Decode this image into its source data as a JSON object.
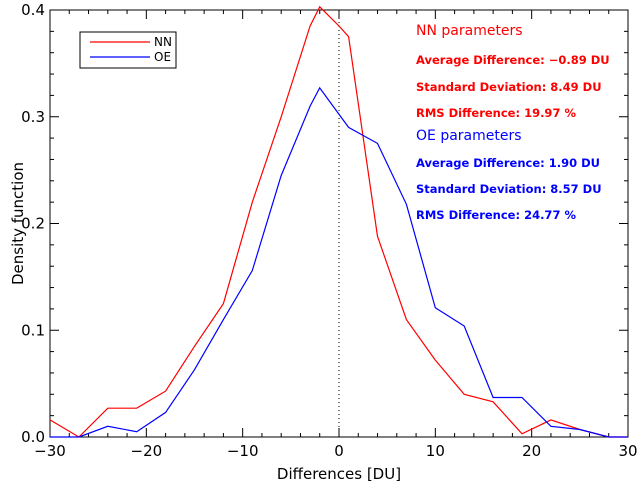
{
  "chart_data": {
    "type": "line",
    "xlabel": "Differences [DU]",
    "ylabel": "Density function",
    "xlim": [
      -30,
      30
    ],
    "ylim": [
      0,
      0.4
    ],
    "x_ticks": [
      -30,
      -20,
      -10,
      0,
      10,
      20,
      30
    ],
    "x_tick_labels": [
      "−30",
      "−20",
      "−10",
      "0",
      "10",
      "20",
      "30"
    ],
    "y_ticks": [
      0,
      0.1,
      0.2,
      0.3,
      0.4
    ],
    "y_tick_labels": [
      "0.0",
      "0.1",
      "0.2",
      "0.3",
      "0.4"
    ],
    "reference_line": {
      "x": 0,
      "style": "dotted",
      "color": "#000000"
    },
    "legend_position": "top-left",
    "series": [
      {
        "name": "NN",
        "color": "#ff0000",
        "x": [
          -30,
          -27,
          -24,
          -21,
          -18,
          -15,
          -12,
          -9,
          -6,
          -3,
          -2,
          0,
          1,
          4,
          7,
          10,
          13,
          16,
          19,
          22,
          25,
          28,
          30
        ],
        "y": [
          0.016,
          0.0,
          0.027,
          0.027,
          0.043,
          0.085,
          0.125,
          0.22,
          0.3,
          0.385,
          0.403,
          0.385,
          0.375,
          0.188,
          0.11,
          0.072,
          0.04,
          0.033,
          0.003,
          0.016,
          0.007,
          0.0,
          0.0
        ]
      },
      {
        "name": "OE",
        "color": "#0000ff",
        "x": [
          -30,
          -27,
          -24,
          -21,
          -18,
          -15,
          -12,
          -9,
          -6,
          -3,
          -2,
          1,
          4,
          7,
          10,
          13,
          16,
          19,
          22,
          25,
          28,
          30
        ],
        "y": [
          0.0,
          0.0,
          0.01,
          0.005,
          0.023,
          0.063,
          0.11,
          0.156,
          0.245,
          0.31,
          0.327,
          0.29,
          0.275,
          0.218,
          0.121,
          0.104,
          0.037,
          0.037,
          0.01,
          0.007,
          0.0,
          0.0
        ]
      }
    ],
    "annotations": [
      {
        "text": "NN parameters",
        "color": "#ff0000",
        "size": "large"
      },
      {
        "text": "Average Difference: −0.89 DU",
        "color": "#ff0000",
        "size": "small"
      },
      {
        "text": "Standard Deviation: 8.49 DU",
        "color": "#ff0000",
        "size": "small"
      },
      {
        "text": "RMS Difference: 19.97 %",
        "color": "#ff0000",
        "size": "small"
      },
      {
        "text": "OE parameters",
        "color": "#0000ff",
        "size": "large"
      },
      {
        "text": "Average Difference: 1.90 DU",
        "color": "#0000ff",
        "size": "small"
      },
      {
        "text": "Standard Deviation: 8.57 DU",
        "color": "#0000ff",
        "size": "small"
      },
      {
        "text": "RMS Difference: 24.77 %",
        "color": "#0000ff",
        "size": "small"
      }
    ]
  }
}
